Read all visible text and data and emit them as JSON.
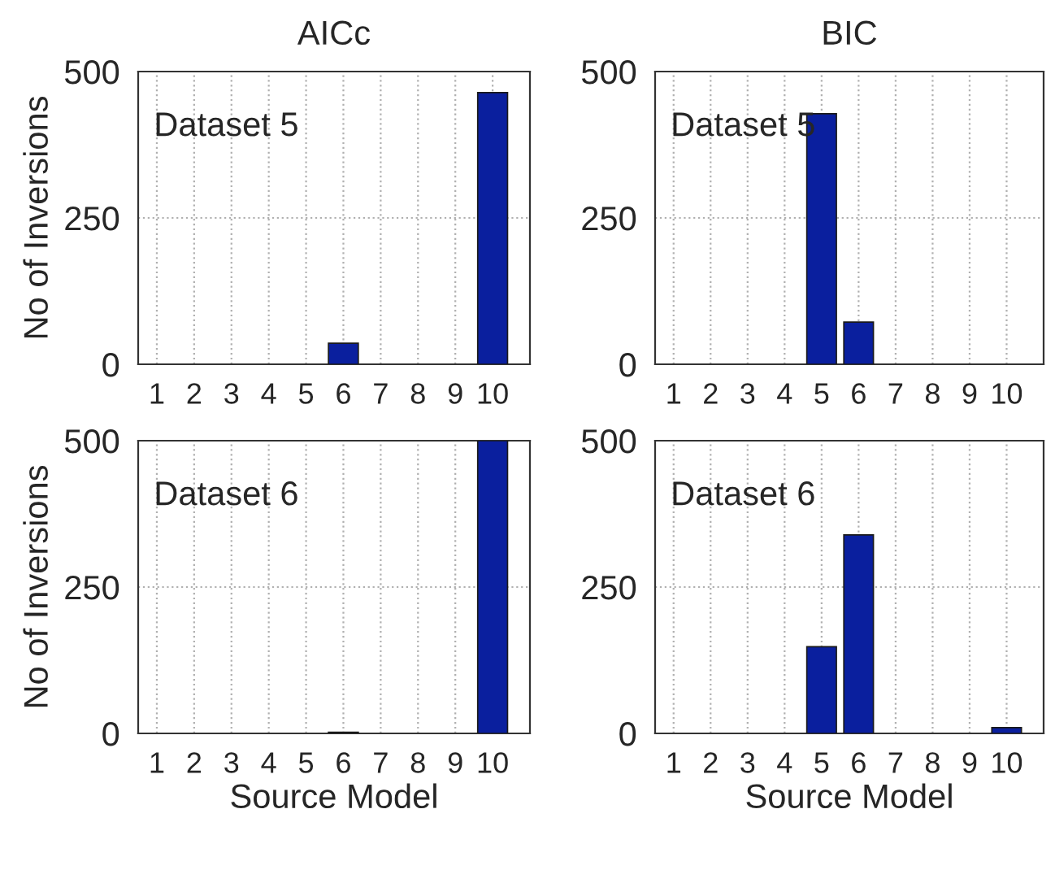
{
  "chart_data": [
    {
      "type": "bar",
      "title": "AICc",
      "ylabel": "No of Inversions",
      "categories": [
        "1",
        "2",
        "3",
        "4",
        "5",
        "6",
        "7",
        "8",
        "9",
        "10"
      ],
      "values": [
        0,
        0,
        0,
        0,
        0,
        36,
        0,
        0,
        0,
        464
      ],
      "color": "#0a1f9e",
      "ylim": [
        0,
        500
      ],
      "yticks": [
        0,
        250,
        500
      ],
      "grid": true,
      "annotations": [
        "Dataset 5"
      ]
    },
    {
      "type": "bar",
      "title": "BIC",
      "categories": [
        "1",
        "2",
        "3",
        "4",
        "5",
        "6",
        "7",
        "8",
        "9",
        "10"
      ],
      "values": [
        0,
        0,
        0,
        0,
        428,
        72,
        0,
        0,
        0,
        0
      ],
      "color": "#0a1f9e",
      "ylim": [
        0,
        500
      ],
      "yticks": [
        0,
        250,
        500
      ],
      "grid": true,
      "annotations": [
        "Dataset 5"
      ]
    },
    {
      "type": "bar",
      "ylabel": "No of Inversions",
      "xlabel": "Source Model",
      "categories": [
        "1",
        "2",
        "3",
        "4",
        "5",
        "6",
        "7",
        "8",
        "9",
        "10"
      ],
      "values": [
        0,
        0,
        0,
        0,
        0,
        2,
        0,
        0,
        0,
        500
      ],
      "color": "#0a1f9e",
      "ylim": [
        0,
        500
      ],
      "yticks": [
        0,
        250,
        500
      ],
      "grid": true,
      "annotations": [
        "Dataset 6"
      ]
    },
    {
      "type": "bar",
      "xlabel": "Source Model",
      "categories": [
        "1",
        "2",
        "3",
        "4",
        "5",
        "6",
        "7",
        "8",
        "9",
        "10"
      ],
      "values": [
        0,
        0,
        0,
        0,
        148,
        339,
        0,
        0,
        0,
        10
      ],
      "color": "#0a1f9e",
      "ylim": [
        0,
        500
      ],
      "yticks": [
        0,
        250,
        500
      ],
      "grid": true,
      "annotations": [
        "Dataset 6"
      ]
    }
  ]
}
